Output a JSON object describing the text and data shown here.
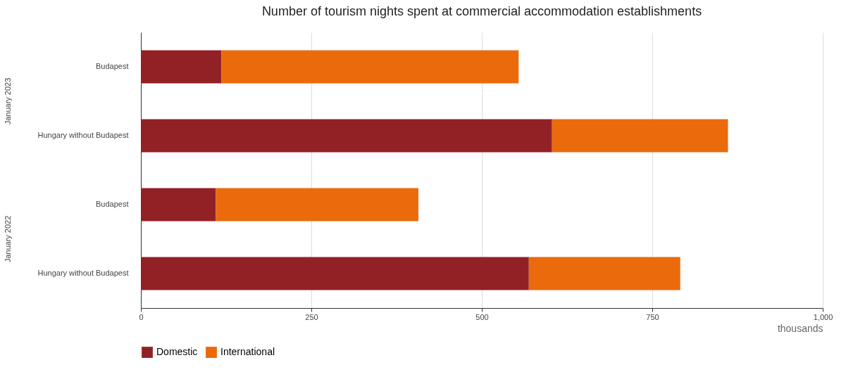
{
  "chart_data": {
    "type": "bar",
    "orientation": "horizontal",
    "stacked": true,
    "title": "Number of tourism nights spent at commercial accommodation establishments",
    "categories": [
      "Budapest",
      "Hungary without Budapest",
      "Budapest",
      "Hungary without Budapest"
    ],
    "series": [
      {
        "name": "Domestic",
        "color": "#922126",
        "values": [
          118,
          603,
          110,
          569
        ]
      },
      {
        "name": "International",
        "color": "#eb6a0c",
        "values": [
          436,
          258,
          297,
          222
        ]
      }
    ],
    "xlim": [
      0,
      1000
    ],
    "xticks": [
      0,
      250,
      500,
      750,
      {
        "value": 1000,
        "label": "1,000"
      }
    ],
    "xlabel": "thousands",
    "grid": "x",
    "legend": "bottom",
    "annotations": [
      "January 2023",
      "January 2022"
    ]
  }
}
